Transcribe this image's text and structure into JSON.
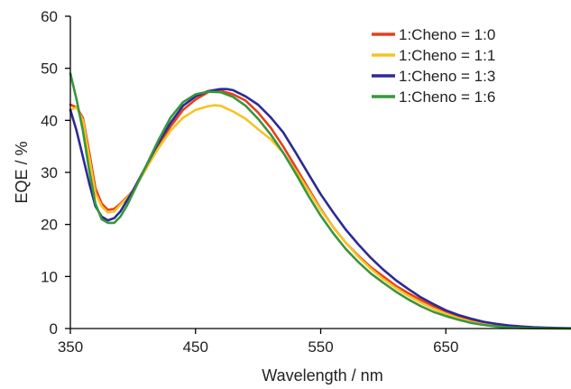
{
  "chart_data": {
    "type": "line",
    "xlabel": "Wavelength / nm",
    "ylabel": "EQE / %",
    "xlim": [
      350,
      750
    ],
    "ylim": [
      0,
      60
    ],
    "x_ticks": [
      350,
      450,
      550,
      650
    ],
    "y_ticks": [
      0,
      10,
      20,
      30,
      40,
      50,
      60
    ],
    "grid": false,
    "legend_position": "top-right",
    "series": [
      {
        "name": "1:Cheno = 1:0",
        "color": "#e8401c",
        "points": [
          [
            350,
            43
          ],
          [
            355,
            42.5
          ],
          [
            360,
            40.5
          ],
          [
            365,
            34
          ],
          [
            370,
            27
          ],
          [
            375,
            24
          ],
          [
            380,
            22.8
          ],
          [
            385,
            23
          ],
          [
            390,
            24
          ],
          [
            395,
            25.2
          ],
          [
            400,
            26.5
          ],
          [
            410,
            30.5
          ],
          [
            420,
            35
          ],
          [
            430,
            38.8
          ],
          [
            440,
            42
          ],
          [
            450,
            44
          ],
          [
            460,
            45.4
          ],
          [
            465,
            45.8
          ],
          [
            470,
            45.7
          ],
          [
            480,
            45
          ],
          [
            490,
            43.8
          ],
          [
            500,
            41.5
          ],
          [
            510,
            38.6
          ],
          [
            520,
            35
          ],
          [
            530,
            31
          ],
          [
            540,
            27
          ],
          [
            550,
            23
          ],
          [
            560,
            19.5
          ],
          [
            570,
            16.5
          ],
          [
            580,
            14
          ],
          [
            590,
            11.8
          ],
          [
            600,
            10
          ],
          [
            610,
            8.2
          ],
          [
            620,
            6.8
          ],
          [
            630,
            5.5
          ],
          [
            640,
            4.3
          ],
          [
            650,
            3.3
          ],
          [
            660,
            2.4
          ],
          [
            670,
            1.7
          ],
          [
            680,
            1.1
          ],
          [
            690,
            0.7
          ],
          [
            700,
            0.4
          ],
          [
            710,
            0.2
          ],
          [
            720,
            0.1
          ],
          [
            730,
            0.05
          ],
          [
            750,
            0
          ]
        ]
      },
      {
        "name": "1:Cheno = 1:1",
        "color": "#f7c325",
        "points": [
          [
            350,
            42
          ],
          [
            355,
            42.5
          ],
          [
            360,
            40
          ],
          [
            365,
            33
          ],
          [
            370,
            26
          ],
          [
            375,
            23.5
          ],
          [
            380,
            22.3
          ],
          [
            385,
            22.5
          ],
          [
            390,
            23.8
          ],
          [
            395,
            25
          ],
          [
            400,
            26.5
          ],
          [
            410,
            30.5
          ],
          [
            420,
            34.5
          ],
          [
            430,
            38
          ],
          [
            440,
            40.5
          ],
          [
            450,
            42
          ],
          [
            460,
            42.7
          ],
          [
            465,
            42.9
          ],
          [
            470,
            42.8
          ],
          [
            480,
            41.7
          ],
          [
            490,
            40.3
          ],
          [
            500,
            38.3
          ],
          [
            510,
            36.4
          ],
          [
            520,
            33.8
          ],
          [
            530,
            30.3
          ],
          [
            540,
            26.6
          ],
          [
            550,
            22.8
          ],
          [
            560,
            19.5
          ],
          [
            570,
            16.5
          ],
          [
            580,
            13.8
          ],
          [
            590,
            11.5
          ],
          [
            600,
            9.5
          ],
          [
            610,
            7.8
          ],
          [
            620,
            6.3
          ],
          [
            630,
            5
          ],
          [
            640,
            3.8
          ],
          [
            650,
            2.8
          ],
          [
            660,
            2
          ],
          [
            670,
            1.3
          ],
          [
            680,
            0.8
          ],
          [
            690,
            0.5
          ],
          [
            700,
            0.3
          ],
          [
            710,
            0.15
          ],
          [
            720,
            0.05
          ],
          [
            750,
            0
          ]
        ]
      },
      {
        "name": "1:Cheno = 1:3",
        "color": "#2b2a96",
        "points": [
          [
            350,
            42
          ],
          [
            355,
            38
          ],
          [
            360,
            33
          ],
          [
            365,
            28
          ],
          [
            370,
            23.5
          ],
          [
            375,
            21.5
          ],
          [
            380,
            20.8
          ],
          [
            385,
            21.2
          ],
          [
            390,
            22.5
          ],
          [
            395,
            24.5
          ],
          [
            400,
            26.5
          ],
          [
            410,
            31
          ],
          [
            420,
            35.5
          ],
          [
            430,
            39.5
          ],
          [
            440,
            42.8
          ],
          [
            450,
            44.6
          ],
          [
            460,
            45.6
          ],
          [
            470,
            46
          ],
          [
            475,
            46
          ],
          [
            480,
            45.8
          ],
          [
            490,
            44.6
          ],
          [
            500,
            43
          ],
          [
            510,
            40.6
          ],
          [
            520,
            37.7
          ],
          [
            530,
            33.8
          ],
          [
            540,
            29.8
          ],
          [
            550,
            25.8
          ],
          [
            560,
            22.3
          ],
          [
            570,
            19
          ],
          [
            580,
            16.2
          ],
          [
            590,
            13.6
          ],
          [
            600,
            11.3
          ],
          [
            610,
            9.3
          ],
          [
            620,
            7.6
          ],
          [
            630,
            6
          ],
          [
            640,
            4.7
          ],
          [
            650,
            3.5
          ],
          [
            660,
            2.6
          ],
          [
            670,
            1.9
          ],
          [
            680,
            1.3
          ],
          [
            690,
            0.9
          ],
          [
            700,
            0.6
          ],
          [
            710,
            0.4
          ],
          [
            720,
            0.25
          ],
          [
            730,
            0.15
          ],
          [
            740,
            0.1
          ],
          [
            750,
            0.05
          ]
        ]
      },
      {
        "name": "1:Cheno = 1:6",
        "color": "#39963c",
        "points": [
          [
            350,
            49
          ],
          [
            355,
            44
          ],
          [
            360,
            38
          ],
          [
            365,
            30.5
          ],
          [
            370,
            24
          ],
          [
            375,
            21
          ],
          [
            380,
            20.3
          ],
          [
            385,
            20.3
          ],
          [
            390,
            21.5
          ],
          [
            395,
            23.5
          ],
          [
            400,
            26
          ],
          [
            410,
            31
          ],
          [
            420,
            36
          ],
          [
            430,
            40.5
          ],
          [
            440,
            43.5
          ],
          [
            450,
            45
          ],
          [
            460,
            45.5
          ],
          [
            470,
            45.4
          ],
          [
            480,
            44.5
          ],
          [
            490,
            42.8
          ],
          [
            500,
            40.3
          ],
          [
            510,
            37.3
          ],
          [
            520,
            33.8
          ],
          [
            530,
            29.8
          ],
          [
            540,
            25.6
          ],
          [
            550,
            21.7
          ],
          [
            560,
            18.3
          ],
          [
            570,
            15.3
          ],
          [
            580,
            12.8
          ],
          [
            590,
            10.6
          ],
          [
            600,
            8.8
          ],
          [
            610,
            7.1
          ],
          [
            620,
            5.6
          ],
          [
            630,
            4.3
          ],
          [
            640,
            3.2
          ],
          [
            650,
            2.4
          ],
          [
            660,
            1.7
          ],
          [
            670,
            1.1
          ],
          [
            680,
            0.7
          ],
          [
            690,
            0.4
          ],
          [
            700,
            0.2
          ],
          [
            710,
            0.1
          ],
          [
            720,
            0.05
          ],
          [
            750,
            0
          ]
        ]
      }
    ]
  }
}
